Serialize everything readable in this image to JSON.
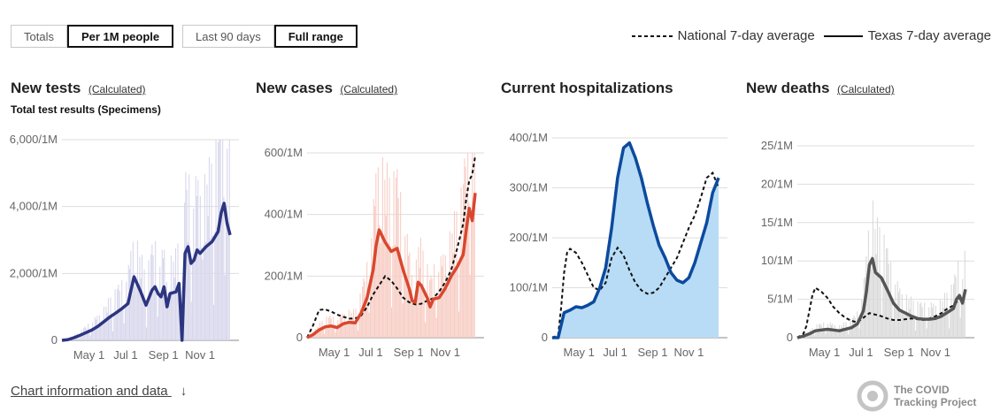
{
  "toggles": {
    "metric": [
      {
        "label": "Totals",
        "active": false
      },
      {
        "label": "Per 1M people",
        "active": true
      }
    ],
    "range": [
      {
        "label": "Last 90 days",
        "active": false
      },
      {
        "label": "Full range",
        "active": true
      }
    ]
  },
  "legend": {
    "national": "National 7-day average",
    "state": "Texas 7-day average"
  },
  "footer": {
    "link": "Chart information and data",
    "arrow": "↓"
  },
  "brand": {
    "line1": "The COVID",
    "line2": "Tracking Project"
  },
  "chart_data": [
    {
      "type": "bar",
      "title": "New tests",
      "calc_label": "(Calculated)",
      "subtitle": "Total test results (Specimens)",
      "ytick_labels": [
        "0",
        "2,000/1M",
        "4,000/1M",
        "6,000/1M"
      ],
      "ytick_values": [
        0,
        2000,
        4000,
        6000
      ],
      "ylim": [
        0,
        6000
      ],
      "xtick_labels": [
        "May 1",
        "Jul 1",
        "Sep 1",
        "Nov 1"
      ],
      "xtick_positions": [
        45,
        106,
        169,
        230
      ],
      "xlim": [
        0,
        280
      ],
      "grid": true,
      "colors": {
        "bar": "#d7d7ec",
        "line": "#2c3580"
      },
      "series": [
        {
          "name": "Texas 7-day average",
          "x": [
            0,
            10,
            20,
            30,
            40,
            50,
            60,
            70,
            80,
            90,
            100,
            110,
            115,
            120,
            125,
            130,
            140,
            150,
            155,
            160,
            165,
            170,
            175,
            180,
            190,
            195,
            200,
            205,
            210,
            215,
            220,
            225,
            230,
            240,
            250,
            260,
            265,
            270,
            275,
            280
          ],
          "values": [
            0,
            20,
            80,
            150,
            230,
            310,
            420,
            560,
            700,
            820,
            950,
            1100,
            1500,
            1900,
            1700,
            1500,
            1050,
            1500,
            1600,
            1400,
            1300,
            1600,
            1000,
            1400,
            1450,
            1700,
            0,
            2600,
            2800,
            2300,
            2400,
            2700,
            2600,
            2800,
            2950,
            3250,
            3800,
            4100,
            3500,
            3150
          ]
        }
      ]
    },
    {
      "type": "bar",
      "title": "New cases",
      "calc_label": "(Calculated)",
      "subtitle": "",
      "ytick_labels": [
        "0",
        "200/1M",
        "400/1M",
        "600/1M"
      ],
      "ytick_values": [
        0,
        200,
        400,
        600
      ],
      "ylim": [
        0,
        600
      ],
      "xtick_labels": [
        "May 1",
        "Jul 1",
        "Sep 1",
        "Nov 1"
      ],
      "xtick_positions": [
        45,
        106,
        169,
        230
      ],
      "xlim": [
        0,
        280
      ],
      "grid": true,
      "colors": {
        "bar": "#f7cdc4",
        "line": "#d9472e"
      },
      "series": [
        {
          "name": "National 7-day average",
          "dashed": true,
          "x": [
            0,
            10,
            20,
            30,
            40,
            50,
            60,
            70,
            80,
            90,
            100,
            110,
            120,
            130,
            140,
            150,
            160,
            170,
            180,
            190,
            200,
            210,
            220,
            230,
            240,
            250,
            260,
            265,
            270,
            275,
            280
          ],
          "values": [
            0,
            40,
            90,
            92,
            85,
            75,
            68,
            62,
            62,
            72,
            100,
            140,
            170,
            200,
            185,
            160,
            130,
            115,
            108,
            110,
            120,
            128,
            150,
            180,
            220,
            290,
            370,
            450,
            510,
            530,
            590
          ]
        },
        {
          "name": "Texas 7-day average",
          "x": [
            0,
            10,
            20,
            30,
            40,
            50,
            60,
            70,
            80,
            90,
            100,
            110,
            115,
            120,
            125,
            130,
            140,
            150,
            160,
            170,
            175,
            180,
            185,
            190,
            195,
            200,
            205,
            210,
            220,
            230,
            240,
            250,
            260,
            265,
            270,
            275,
            280
          ],
          "values": [
            0,
            10,
            25,
            35,
            38,
            33,
            45,
            50,
            48,
            80,
            130,
            220,
            300,
            350,
            330,
            310,
            280,
            290,
            220,
            160,
            120,
            115,
            180,
            170,
            150,
            130,
            100,
            125,
            130,
            160,
            200,
            230,
            270,
            350,
            420,
            380,
            470
          ]
        }
      ]
    },
    {
      "type": "area",
      "title": "Current hospitalizations",
      "calc_label": "",
      "subtitle": "",
      "ytick_labels": [
        "0",
        "100/1M",
        "200/1M",
        "300/1M",
        "400/1M"
      ],
      "ytick_values": [
        0,
        100,
        200,
        300,
        400
      ],
      "ylim": [
        0,
        400
      ],
      "xtick_labels": [
        "May 1",
        "Jul 1",
        "Sep 1",
        "Nov 1"
      ],
      "xtick_positions": [
        45,
        106,
        169,
        230
      ],
      "xlim": [
        0,
        280
      ],
      "grid": true,
      "colors": {
        "fill": "#b8dcf6",
        "line": "#0c4a9e"
      },
      "series": [
        {
          "name": "National 7-day average",
          "dashed": true,
          "x": [
            0,
            10,
            15,
            20,
            25,
            30,
            40,
            50,
            60,
            70,
            80,
            90,
            100,
            110,
            120,
            130,
            140,
            150,
            160,
            170,
            180,
            190,
            200,
            210,
            220,
            230,
            240,
            250,
            260,
            270,
            280
          ],
          "values": [
            0,
            5,
            60,
            130,
            170,
            178,
            170,
            150,
            125,
            100,
            95,
            110,
            160,
            180,
            165,
            135,
            110,
            95,
            88,
            90,
            100,
            120,
            140,
            160,
            190,
            220,
            245,
            280,
            320,
            330,
            300
          ]
        },
        {
          "name": "Texas 7-day average",
          "x": [
            0,
            10,
            15,
            20,
            30,
            40,
            50,
            60,
            70,
            80,
            90,
            100,
            110,
            120,
            130,
            140,
            150,
            160,
            170,
            180,
            190,
            200,
            210,
            220,
            230,
            240,
            250,
            260,
            270,
            280
          ],
          "values": [
            0,
            0,
            25,
            50,
            55,
            62,
            60,
            65,
            72,
            100,
            140,
            220,
            320,
            380,
            390,
            360,
            320,
            270,
            225,
            185,
            160,
            130,
            115,
            110,
            120,
            150,
            190,
            230,
            290,
            320
          ]
        }
      ]
    },
    {
      "type": "bar",
      "title": "New deaths",
      "calc_label": "(Calculated)",
      "subtitle": "",
      "ytick_labels": [
        "0",
        "5/1M",
        "10/1M",
        "15/1M",
        "20/1M",
        "25/1M"
      ],
      "ytick_values": [
        0,
        5,
        10,
        15,
        20,
        25
      ],
      "ylim": [
        0,
        25
      ],
      "xtick_labels": [
        "May 1",
        "Jul 1",
        "Sep 1",
        "Nov 1"
      ],
      "xtick_positions": [
        45,
        106,
        169,
        230
      ],
      "xlim": [
        0,
        280
      ],
      "grid": true,
      "colors": {
        "bar": "#dadada",
        "line": "#555555"
      },
      "series": [
        {
          "name": "National 7-day average",
          "dashed": true,
          "x": [
            0,
            10,
            15,
            20,
            25,
            30,
            40,
            50,
            60,
            70,
            80,
            90,
            100,
            110,
            120,
            130,
            140,
            150,
            160,
            170,
            180,
            190,
            200,
            210,
            220,
            230,
            240,
            250,
            260,
            270,
            280
          ],
          "values": [
            0,
            0.5,
            1.5,
            3.5,
            5.5,
            6.5,
            6.0,
            5.2,
            4.0,
            3.2,
            2.6,
            2.2,
            2.0,
            2.6,
            3.2,
            3.0,
            2.8,
            2.5,
            2.3,
            2.3,
            2.4,
            2.5,
            2.4,
            2.3,
            2.5,
            2.8,
            3.2,
            3.8,
            4.2,
            5.0,
            5.8
          ]
        },
        {
          "name": "Texas 7-day average",
          "x": [
            0,
            10,
            20,
            30,
            40,
            50,
            60,
            70,
            80,
            90,
            100,
            110,
            115,
            120,
            125,
            130,
            140,
            150,
            160,
            170,
            180,
            190,
            200,
            210,
            220,
            230,
            240,
            250,
            260,
            265,
            270,
            275,
            280
          ],
          "values": [
            0,
            0.2,
            0.5,
            0.9,
            1.0,
            1.1,
            1.0,
            0.9,
            1.1,
            1.3,
            1.8,
            3.5,
            6.0,
            9.5,
            10.3,
            8.5,
            7.8,
            6.2,
            4.5,
            3.6,
            3.2,
            2.8,
            2.5,
            2.4,
            2.4,
            2.5,
            2.8,
            3.3,
            3.8,
            5.0,
            5.5,
            4.5,
            6.3
          ]
        }
      ]
    }
  ]
}
